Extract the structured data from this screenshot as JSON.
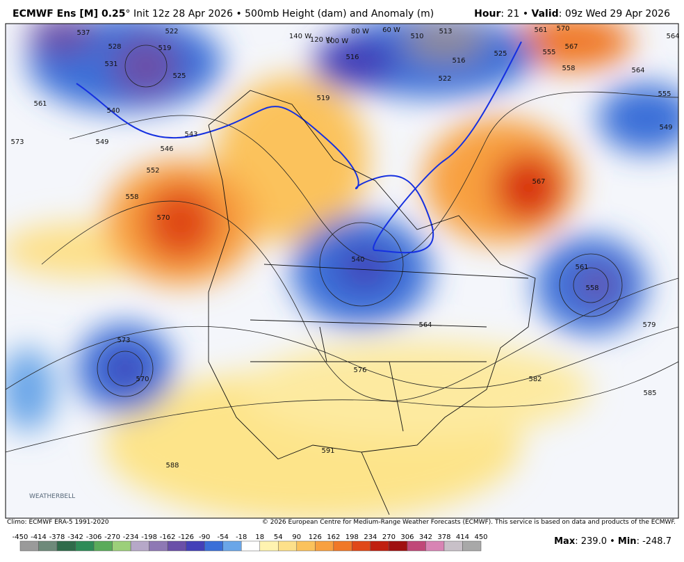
{
  "header": {
    "title_bold": "ECMWF Ens [M] 0.25",
    "title_rest": "° Init 12z 28 Apr 2026 • 500mb Height (dam) and Anomaly (m)",
    "hour_key": "Hour",
    "hour_rest": ": 21 • ",
    "valid_key": "Valid",
    "valid_rest": ": 09z Wed 29 Apr 2026"
  },
  "map": {
    "contour_labels": [
      "537",
      "528",
      "531",
      "519",
      "522",
      "525",
      "540",
      "549",
      "546",
      "543",
      "552",
      "558",
      "570",
      "567",
      "561",
      "573",
      "573",
      "570",
      "540",
      "576",
      "582",
      "585",
      "588",
      "591",
      "564",
      "561",
      "558",
      "579",
      "555",
      "549",
      "564",
      "558",
      "555",
      "561",
      "570",
      "567",
      "510",
      "513",
      "516",
      "522",
      "525",
      "516",
      "519",
      "564",
      "140 W",
      "120 W",
      "100 W",
      "80 W",
      "60 W"
    ],
    "logo": "WEATHERBELL"
  },
  "footer": {
    "climo": "Climo: ECMWF ERA-5 1991-2020",
    "copyright": "© 2026 European Centre for Medium-Range Weather Forecasts (ECMWF). This service is based on data and products of the ECMWF.",
    "max_key": "Max",
    "max_value": "239.0",
    "sep": " • ",
    "min_key": "Min",
    "min_value": "-248.7"
  },
  "colorbar": {
    "labels": [
      "-450",
      "-414",
      "-378",
      "-342",
      "-306",
      "-270",
      "-234",
      "-198",
      "-162",
      "-126",
      "-90",
      "-54",
      "-18",
      "18",
      "54",
      "90",
      "126",
      "162",
      "198",
      "234",
      "270",
      "306",
      "342",
      "378",
      "414",
      "450"
    ],
    "colors": [
      "#9a9a9a",
      "#6e8a7a",
      "#2f6b4a",
      "#2e8b57",
      "#5aab5a",
      "#9ccf7a",
      "#b6a8c8",
      "#8e78b4",
      "#6a4fa8",
      "#4340b8",
      "#3a6fd8",
      "#6aa6e8",
      "#ffffff",
      "#fff3b0",
      "#fde08a",
      "#fbc25c",
      "#f8a040",
      "#f07828",
      "#e04818",
      "#c02010",
      "#a01010",
      "#c04878",
      "#d884b4",
      "#c8c0c8",
      "#a8a8a8"
    ]
  }
}
